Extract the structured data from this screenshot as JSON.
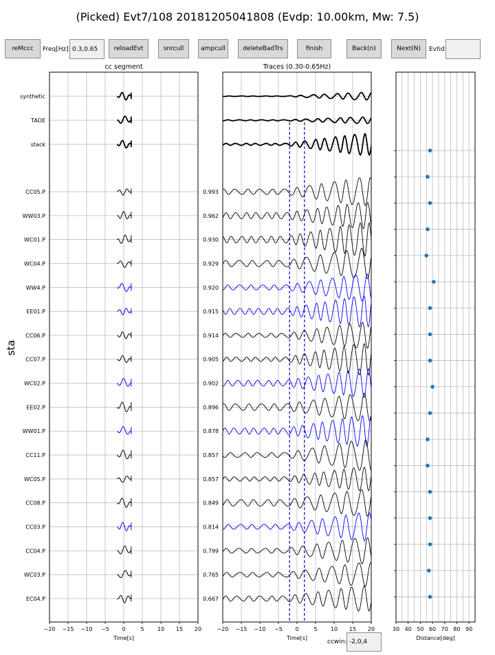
{
  "title": "(Picked) Evt7/108 20181205041808 (Evdp: 10.00km, Mw: 7.5)",
  "toolbar": {
    "remccc": "reMccc",
    "freq_label": "Freq[Hz]:",
    "freq_value": "0.3,0.65",
    "reloadevt": "reloadEvt",
    "snrcull": "snrcull",
    "ampcull": "ampcull",
    "deletebadtrs": "deleteBadTrs",
    "finish": "finish",
    "back": "Back(n)",
    "next": "Next(N)",
    "evtid_label": "Evtid:",
    "evtid_value": ""
  },
  "ccwin": {
    "label": "ccwin:",
    "value": "-2,0,4"
  },
  "colors": {
    "black_trace": "#000000",
    "blue_trace": "#0000ff",
    "grid": "#b0b0b0",
    "dist_marker": "#1f77b4",
    "pick_line": "#0000cc"
  },
  "chart_data": [
    {
      "type": "line",
      "title": "cc segment",
      "xlabel": "Time[s]",
      "ylabel": "sta",
      "xlim": [
        -20,
        20
      ],
      "xticks": [
        "−20",
        "−15",
        "−10",
        "−5",
        "0",
        "5",
        "10",
        "15",
        "20"
      ],
      "grid": true,
      "reference_traces": [
        "synthetic",
        "TAOE",
        "stack"
      ],
      "stations": [
        "CC05.P",
        "WW03.P",
        "WC01.P",
        "WC04.P",
        "WW4.P",
        "EE01.P",
        "CC06.P",
        "CC07.P",
        "WC02.P",
        "EE02.P",
        "WW01.P",
        "CC11.P",
        "WC05.P",
        "CC08.P",
        "CC03.P",
        "CC04.P",
        "WC03.P",
        "EC04.P"
      ],
      "blue_stations": [
        "WW4.P",
        "EE01.P",
        "WC02.P",
        "WW01.P",
        "CC03.P"
      ]
    },
    {
      "type": "line",
      "title": "Traces (0.30-0.65Hz)",
      "xlabel": "Time[s]",
      "xlim": [
        -20,
        20
      ],
      "xticks": [
        "−20",
        "−15",
        "−10",
        "−5",
        "0",
        "5",
        "10",
        "15",
        "20"
      ],
      "grid": true,
      "cc_values": [
        "0.993",
        "0.962",
        "0.930",
        "0.929",
        "0.920",
        "0.915",
        "0.914",
        "0.905",
        "0.902",
        "0.896",
        "0.878",
        "0.857",
        "0.857",
        "0.849",
        "0.814",
        "0.799",
        "0.765",
        "0.667"
      ],
      "pick_window": [
        -2,
        2
      ]
    },
    {
      "type": "scatter",
      "xlabel": "Distance[deg]",
      "xlim": [
        30,
        95
      ],
      "xticks": [
        "30",
        "40",
        "50",
        "60",
        "70",
        "80",
        "90"
      ],
      "grid": true,
      "distances": [
        58,
        56,
        58,
        56,
        55,
        61,
        58,
        58,
        58,
        60,
        58,
        56,
        56,
        58,
        58,
        58,
        57,
        58
      ]
    }
  ]
}
